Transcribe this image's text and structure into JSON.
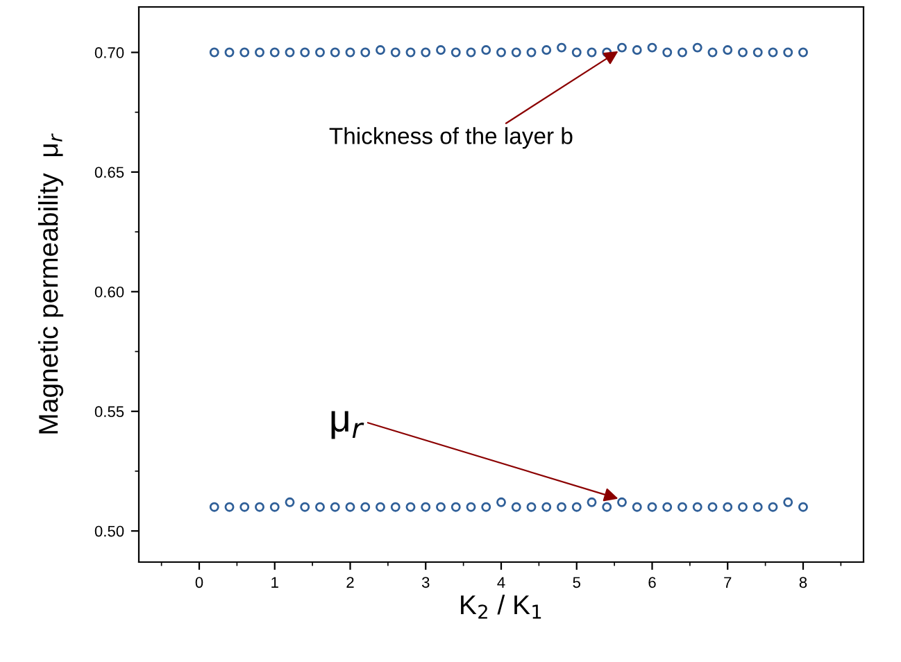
{
  "chart_data": {
    "type": "scatter",
    "xlabel": "K$_{2}$ / K$_{1}$",
    "ylabel": "Magnetic permeability  μ$_{r}$",
    "x": [
      0.2,
      0.4,
      0.6,
      0.8,
      1.0,
      1.2,
      1.4,
      1.6,
      1.8,
      2.0,
      2.2,
      2.4,
      2.6,
      2.8,
      3.0,
      3.2,
      3.4,
      3.6,
      3.8,
      4.0,
      4.2,
      4.4,
      4.6,
      4.8,
      5.0,
      5.2,
      5.4,
      5.6,
      5.8,
      6.0,
      6.2,
      6.4,
      6.6,
      6.8,
      7.0,
      7.2,
      7.4,
      7.6,
      7.8,
      8.0
    ],
    "series": [
      {
        "color": "#2f5f98",
        "values": [
          0.7,
          0.7,
          0.7,
          0.7,
          0.7,
          0.7,
          0.7,
          0.7,
          0.7,
          0.7,
          0.7,
          0.701,
          0.7,
          0.7,
          0.7,
          0.701,
          0.7,
          0.7,
          0.701,
          0.7,
          0.7,
          0.7,
          0.701,
          0.702,
          0.7,
          0.7,
          0.7,
          0.702,
          0.701,
          0.702,
          0.7,
          0.7,
          0.702,
          0.7,
          0.701,
          0.7,
          0.7,
          0.7,
          0.7,
          0.7
        ]
      },
      {
        "color": "#2f5f98",
        "values": [
          0.51,
          0.51,
          0.51,
          0.51,
          0.51,
          0.512,
          0.51,
          0.51,
          0.51,
          0.51,
          0.51,
          0.51,
          0.51,
          0.51,
          0.51,
          0.51,
          0.51,
          0.51,
          0.51,
          0.512,
          0.51,
          0.51,
          0.51,
          0.51,
          0.51,
          0.512,
          0.51,
          0.512,
          0.51,
          0.51,
          0.51,
          0.51,
          0.51,
          0.51,
          0.51,
          0.51,
          0.51,
          0.51,
          0.512,
          0.51
        ]
      }
    ],
    "marker": "circle",
    "xlim": [
      -0.8,
      8.8
    ],
    "ylim": [
      0.487,
      0.719
    ],
    "xticks": [
      0,
      1,
      2,
      3,
      4,
      5,
      6,
      7,
      8
    ],
    "yticks": [
      {
        "value": 0.5,
        "label": "0.50"
      },
      {
        "value": 0.55,
        "label": "0.55"
      },
      {
        "value": 0.6,
        "label": "0.60"
      },
      {
        "value": 0.65,
        "label": "0.65"
      },
      {
        "value": 0.7,
        "label": "0.70"
      }
    ],
    "annotations": [
      {
        "text": "Thickness of the layer b",
        "x": 5.55,
        "y": 0.7005
      },
      {
        "text": "μ$_{r}$",
        "x": 5.55,
        "y": 0.5135
      }
    ],
    "grid": false,
    "legend": false
  }
}
